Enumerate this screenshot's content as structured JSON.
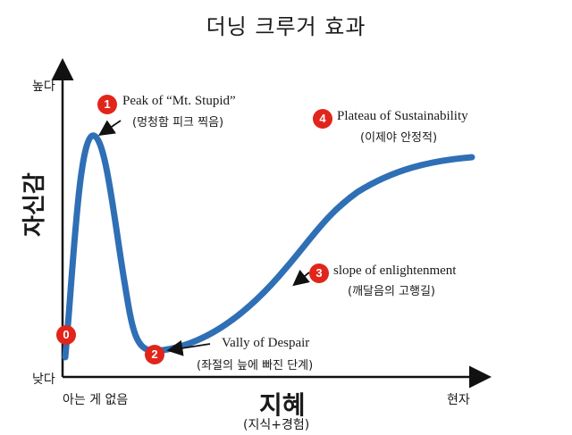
{
  "title": "더닝 크루거 효과",
  "y_axis": {
    "label": "자신감",
    "high": "높다",
    "low": "낮다"
  },
  "x_axis": {
    "label": "지혜",
    "sublabel": "(지식+경험)",
    "start": "아는 게 없음",
    "end": "현자"
  },
  "points": [
    {
      "badge": "0"
    },
    {
      "badge": "1",
      "label": "Peak of “Mt. Stupid”",
      "sublabel": "(멍청함 피크 찍음)"
    },
    {
      "badge": "2",
      "label": "Vally of Despair",
      "sublabel": "(좌절의 늪에 빠진 단계)"
    },
    {
      "badge": "3",
      "label": "slope of enlightenment",
      "sublabel": "(깨달음의 고행길)"
    },
    {
      "badge": "4",
      "label": "Plateau of Sustainability",
      "sublabel": "(이제야 안정적)"
    }
  ],
  "colors": {
    "curve": "#2f6fb5",
    "badge": "#e1251b",
    "axis": "#111111"
  }
}
